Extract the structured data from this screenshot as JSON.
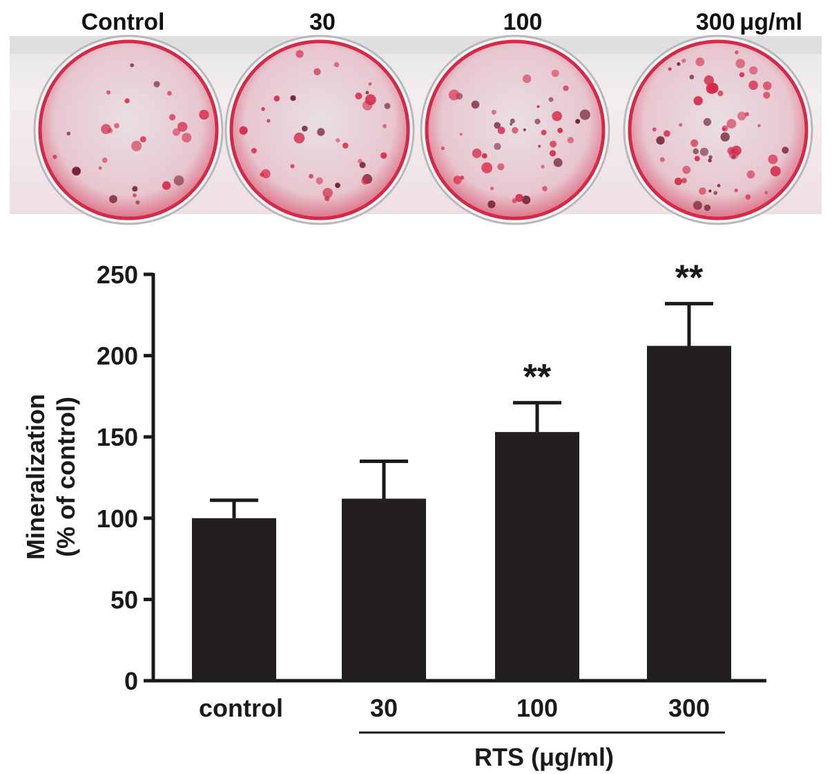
{
  "photo": {
    "well_labels": [
      "Control",
      "30",
      "100",
      "300 μg/ml"
    ],
    "plate_color": "#f2e6ea",
    "stain_color": "#d42a4a"
  },
  "chart_data": {
    "type": "bar",
    "title": "",
    "categories": [
      "control",
      "30",
      "100",
      "300"
    ],
    "values": [
      100,
      112,
      153,
      206
    ],
    "error_upper": [
      111,
      135,
      171,
      232
    ],
    "significance": [
      "",
      "",
      "**",
      "**"
    ],
    "ylabel_line1": "Mineralization",
    "ylabel_line2": "(% of control)",
    "xlabel": "RTS (μg/ml)",
    "xlabel_group_categories": [
      "30",
      "100",
      "300"
    ],
    "ylim": [
      0,
      250
    ],
    "yticks": [
      0,
      50,
      100,
      150,
      200,
      250
    ],
    "grid": false,
    "legend": "none",
    "bar_color": "#231f20"
  }
}
